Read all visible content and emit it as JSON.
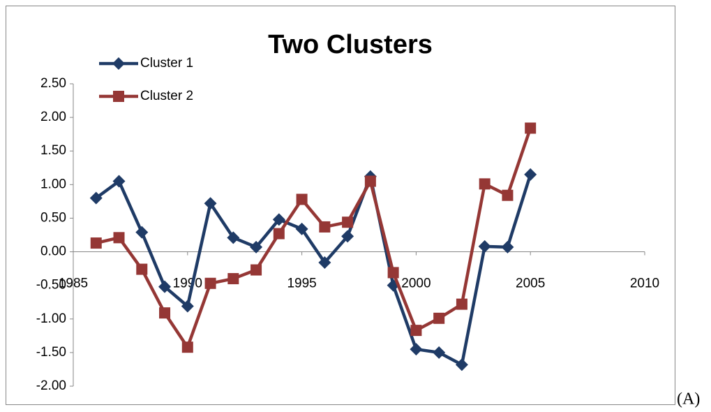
{
  "chart_data": {
    "type": "line",
    "title": "Two Clusters",
    "annotation": "(A)",
    "x": [
      1986,
      1987,
      1988,
      1989,
      1990,
      1991,
      1992,
      1993,
      1994,
      1995,
      1996,
      1997,
      1998,
      1999,
      2000,
      2001,
      2002,
      2003,
      2004,
      2005
    ],
    "series": [
      {
        "name": "Cluster 1",
        "color": "#1f3b66",
        "marker": "diamond",
        "values": [
          0.8,
          1.05,
          0.29,
          -0.52,
          -0.81,
          0.72,
          0.21,
          0.07,
          0.48,
          0.34,
          -0.16,
          0.23,
          1.12,
          -0.5,
          -1.45,
          -1.5,
          -1.68,
          0.08,
          0.07,
          1.15
        ]
      },
      {
        "name": "Cluster 2",
        "color": "#953735",
        "marker": "square",
        "values": [
          0.13,
          0.21,
          -0.26,
          -0.91,
          -1.42,
          -0.47,
          -0.4,
          -0.27,
          0.27,
          0.78,
          0.37,
          0.44,
          1.05,
          -0.31,
          -1.17,
          -0.99,
          -0.78,
          1.01,
          0.84,
          1.84
        ]
      }
    ],
    "xlim": [
      1985,
      2010
    ],
    "xticks": [
      1985,
      1990,
      1995,
      2000,
      2005,
      2010
    ],
    "ylim": [
      -2,
      2.5
    ],
    "yticks": [
      {
        "value": -2,
        "label": "-2.00"
      },
      {
        "value": -1.5,
        "label": "-1.50"
      },
      {
        "value": -1,
        "label": "-1.00"
      },
      {
        "value": -0.5,
        "label": "-0.50"
      },
      {
        "value": 0,
        "label": "0.00"
      },
      {
        "value": 0.5,
        "label": "0.50"
      },
      {
        "value": 1,
        "label": "1.00"
      },
      {
        "value": 1.5,
        "label": "1.50"
      },
      {
        "value": 2,
        "label": "2.00"
      },
      {
        "value": 2.5,
        "label": "2.50"
      }
    ],
    "grid": false,
    "legend": "top-left"
  }
}
